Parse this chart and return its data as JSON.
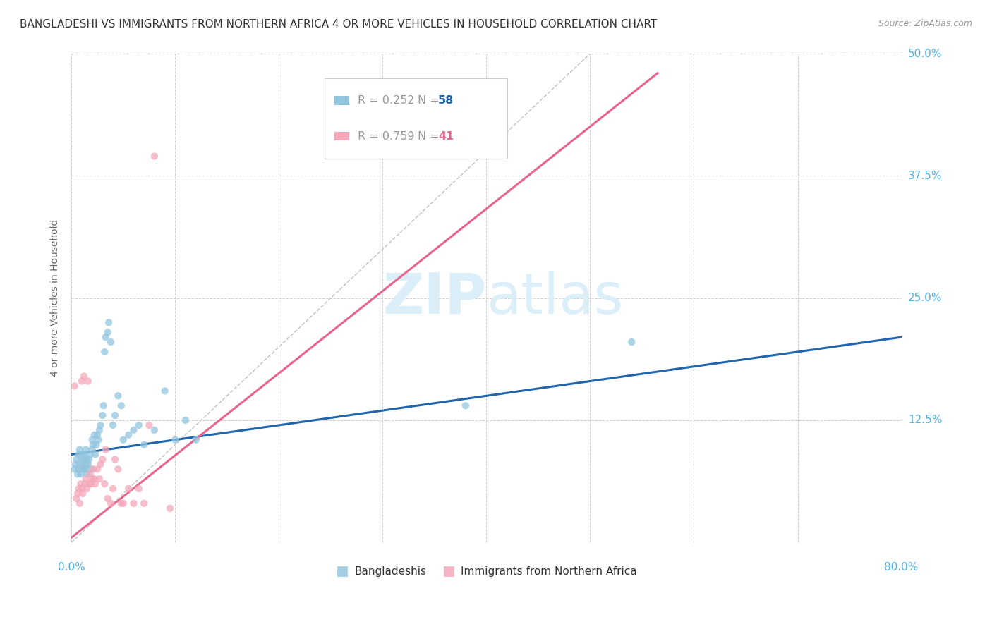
{
  "title": "BANGLADESHI VS IMMIGRANTS FROM NORTHERN AFRICA 4 OR MORE VEHICLES IN HOUSEHOLD CORRELATION CHART",
  "source": "Source: ZipAtlas.com",
  "ylabel": "4 or more Vehicles in Household",
  "xlim": [
    0.0,
    0.8
  ],
  "ylim": [
    0.0,
    0.5
  ],
  "xticks": [
    0.0,
    0.1,
    0.2,
    0.3,
    0.4,
    0.5,
    0.6,
    0.7,
    0.8
  ],
  "yticks": [
    0.0,
    0.125,
    0.25,
    0.375,
    0.5
  ],
  "yticklabels": [
    "",
    "12.5%",
    "25.0%",
    "37.5%",
    "50.0%"
  ],
  "legend_labels": [
    "Bangladeshis",
    "Immigrants from Northern Africa"
  ],
  "bg_color": "#ffffff",
  "grid_color": "#d0d0d0",
  "watermark_zip": "ZIP",
  "watermark_atlas": "atlas",
  "watermark_color": "#dceef8",
  "blue_scatter_x": [
    0.003,
    0.004,
    0.005,
    0.006,
    0.007,
    0.007,
    0.008,
    0.008,
    0.009,
    0.01,
    0.01,
    0.011,
    0.011,
    0.012,
    0.012,
    0.013,
    0.013,
    0.014,
    0.014,
    0.015,
    0.015,
    0.016,
    0.017,
    0.018,
    0.019,
    0.02,
    0.02,
    0.021,
    0.022,
    0.023,
    0.024,
    0.025,
    0.026,
    0.027,
    0.028,
    0.03,
    0.031,
    0.032,
    0.033,
    0.035,
    0.036,
    0.038,
    0.04,
    0.042,
    0.045,
    0.048,
    0.05,
    0.055,
    0.06,
    0.065,
    0.07,
    0.08,
    0.09,
    0.1,
    0.11,
    0.12,
    0.38,
    0.54
  ],
  "blue_scatter_y": [
    0.075,
    0.08,
    0.085,
    0.07,
    0.075,
    0.09,
    0.08,
    0.095,
    0.07,
    0.075,
    0.085,
    0.08,
    0.09,
    0.075,
    0.085,
    0.075,
    0.09,
    0.08,
    0.095,
    0.07,
    0.085,
    0.08,
    0.085,
    0.09,
    0.075,
    0.095,
    0.105,
    0.1,
    0.11,
    0.09,
    0.1,
    0.11,
    0.105,
    0.115,
    0.12,
    0.13,
    0.14,
    0.195,
    0.21,
    0.215,
    0.225,
    0.205,
    0.12,
    0.13,
    0.15,
    0.14,
    0.105,
    0.11,
    0.115,
    0.12,
    0.1,
    0.115,
    0.155,
    0.105,
    0.125,
    0.105,
    0.14,
    0.205
  ],
  "pink_scatter_x": [
    0.003,
    0.005,
    0.006,
    0.007,
    0.008,
    0.009,
    0.01,
    0.01,
    0.011,
    0.012,
    0.013,
    0.014,
    0.015,
    0.016,
    0.017,
    0.018,
    0.019,
    0.02,
    0.021,
    0.022,
    0.023,
    0.025,
    0.027,
    0.028,
    0.03,
    0.032,
    0.033,
    0.035,
    0.038,
    0.04,
    0.042,
    0.045,
    0.048,
    0.05,
    0.055,
    0.06,
    0.065,
    0.07,
    0.075,
    0.08,
    0.095
  ],
  "pink_scatter_y": [
    0.16,
    0.045,
    0.05,
    0.055,
    0.04,
    0.06,
    0.055,
    0.165,
    0.05,
    0.17,
    0.06,
    0.065,
    0.055,
    0.165,
    0.06,
    0.07,
    0.06,
    0.065,
    0.075,
    0.065,
    0.06,
    0.075,
    0.065,
    0.08,
    0.085,
    0.06,
    0.095,
    0.045,
    0.04,
    0.055,
    0.085,
    0.075,
    0.04,
    0.04,
    0.055,
    0.04,
    0.055,
    0.04,
    0.12,
    0.395,
    0.035
  ],
  "blue_line_x": [
    0.0,
    0.8
  ],
  "blue_line_y": [
    0.09,
    0.21
  ],
  "pink_line_x": [
    0.0,
    0.565
  ],
  "pink_line_y": [
    0.005,
    0.48
  ],
  "diag_line_x": [
    0.0,
    0.5
  ],
  "diag_line_y": [
    0.0,
    0.5
  ],
  "title_fontsize": 11,
  "axis_label_fontsize": 10,
  "tick_fontsize": 11,
  "scatter_size": 55,
  "blue_color": "#92c5de",
  "pink_color": "#f4a7b9",
  "blue_line_color": "#2166ac",
  "pink_line_color": "#e8648c",
  "tick_color": "#4db3e6",
  "legend_r_color": "#999999",
  "legend_n_color": "#999999",
  "legend_58_color": "#2166ac",
  "legend_41_color": "#e8648c"
}
